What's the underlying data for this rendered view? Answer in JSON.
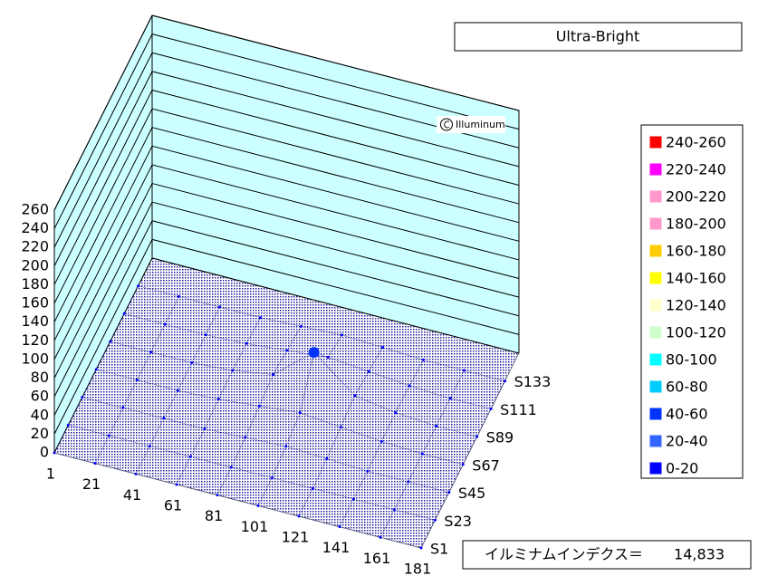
{
  "chart_data": {
    "type": "surface3d",
    "title": "Ultra-Bright",
    "watermark": "Illuminum",
    "index_label": "イルミナムインデクス＝",
    "index_value": "14,833",
    "categories": [
      1,
      21,
      41,
      61,
      81,
      101,
      121,
      141,
      161,
      181
    ],
    "series": [
      {
        "name": "S1",
        "values": [
          0,
          0,
          0,
          0,
          0,
          0,
          0,
          0,
          0,
          0
        ]
      },
      {
        "name": "S23",
        "values": [
          0,
          0,
          0,
          0,
          0,
          0,
          0,
          0,
          0,
          0
        ]
      },
      {
        "name": "S45",
        "values": [
          0,
          0,
          0,
          0,
          2,
          4,
          2,
          0,
          0,
          0
        ]
      },
      {
        "name": "S67",
        "values": [
          0,
          0,
          0,
          2,
          6,
          10,
          6,
          2,
          0,
          0
        ]
      },
      {
        "name": "S89",
        "values": [
          0,
          0,
          0,
          3,
          10,
          45,
          10,
          3,
          0,
          0
        ]
      },
      {
        "name": "S111",
        "values": [
          0,
          0,
          0,
          2,
          6,
          10,
          6,
          2,
          0,
          0
        ]
      },
      {
        "name": "S133",
        "values": [
          0,
          0,
          0,
          0,
          2,
          4,
          2,
          0,
          0,
          0
        ]
      }
    ],
    "ylim": [
      0,
      260
    ],
    "yticks": [
      0,
      20,
      40,
      60,
      80,
      100,
      120,
      140,
      160,
      180,
      200,
      220,
      240,
      260
    ],
    "wall_color": "#ccffff",
    "mesh_color": "#000080",
    "legend": [
      {
        "label": "240-260",
        "color": "#ff0000"
      },
      {
        "label": "220-240",
        "color": "#ff00ff"
      },
      {
        "label": "200-220",
        "color": "#ff99cc"
      },
      {
        "label": "180-200",
        "color": "#ff99cc"
      },
      {
        "label": "160-180",
        "color": "#ffcc00"
      },
      {
        "label": "140-160",
        "color": "#ffff00"
      },
      {
        "label": "120-140",
        "color": "#ffffcc"
      },
      {
        "label": "100-120",
        "color": "#ccffcc"
      },
      {
        "label": "80-100",
        "color": "#00ffff"
      },
      {
        "label": "60-80",
        "color": "#00ccff"
      },
      {
        "label": "40-60",
        "color": "#0033ff"
      },
      {
        "label": "20-40",
        "color": "#3366ff"
      },
      {
        "label": "0-20",
        "color": "#0000ff"
      }
    ]
  }
}
